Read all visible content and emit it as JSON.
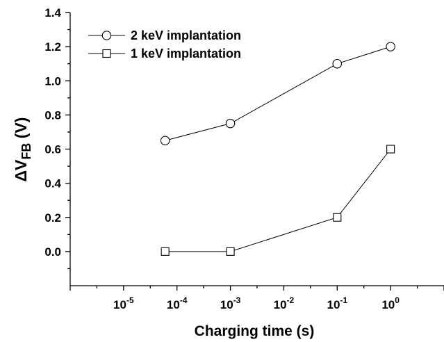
{
  "chart_data": {
    "type": "scatter",
    "xscale": "log",
    "xlim": [
      1e-06,
      10
    ],
    "ylim": [
      -0.2,
      1.4
    ],
    "xlabel": "Charging time (s)",
    "ylabel": {
      "main": "ΔV",
      "sub": "FB",
      "rest": " (V)"
    },
    "xticks": [
      {
        "value": 1e-05,
        "base": "10",
        "exp": "-5"
      },
      {
        "value": 0.0001,
        "base": "10",
        "exp": "-4"
      },
      {
        "value": 0.001,
        "base": "10",
        "exp": "-3"
      },
      {
        "value": 0.01,
        "base": "10",
        "exp": "-2"
      },
      {
        "value": 0.1,
        "base": "10",
        "exp": "-1"
      },
      {
        "value": 1,
        "base": "10",
        "exp": "0"
      }
    ],
    "yticks": [
      {
        "value": 0.0,
        "label": "0.0"
      },
      {
        "value": 0.2,
        "label": "0.2"
      },
      {
        "value": 0.4,
        "label": "0.4"
      },
      {
        "value": 0.6,
        "label": "0.6"
      },
      {
        "value": 0.8,
        "label": "0.8"
      },
      {
        "value": 1.0,
        "label": "1.0"
      },
      {
        "value": 1.2,
        "label": "1.2"
      },
      {
        "value": 1.4,
        "label": "1.4"
      }
    ],
    "yminor": [
      -0.1,
      0.1,
      0.3,
      0.5,
      0.7,
      0.9,
      1.1,
      1.3
    ],
    "grid": false,
    "legend_position": "top-left",
    "series": [
      {
        "name": "2 keV implantation",
        "marker": "circle",
        "x": [
          6e-05,
          0.001,
          0.1,
          1
        ],
        "y": [
          0.65,
          0.75,
          1.1,
          1.2
        ]
      },
      {
        "name": "1 keV implantation",
        "marker": "square",
        "x": [
          6e-05,
          0.001,
          0.1,
          1
        ],
        "y": [
          0.0,
          0.0,
          0.2,
          0.6
        ]
      }
    ]
  }
}
